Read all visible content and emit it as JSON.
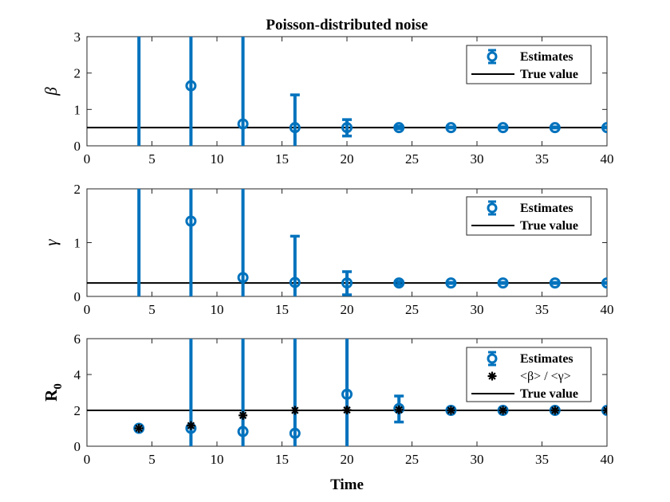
{
  "figure": {
    "title": "Poisson-distributed noise",
    "xlabel": "Time"
  },
  "colors": {
    "estimate": "#0072BD",
    "truth": "#000000",
    "ratio": "#000000",
    "axis": "#262626"
  },
  "chart_data": [
    {
      "type": "scatter",
      "panel": "beta",
      "ylabel": "β",
      "xlim": [
        0,
        40
      ],
      "ylim": [
        0,
        3
      ],
      "xticks": [
        "0",
        "5",
        "10",
        "15",
        "20",
        "25",
        "30",
        "35",
        "40"
      ],
      "yticks": [
        "0",
        "1",
        "2",
        "3"
      ],
      "legend": {
        "placement": "top-right",
        "entries": [
          "Estimates",
          "True value"
        ]
      },
      "true_value": 0.5,
      "series": [
        {
          "name": "Estimates",
          "x": [
            4,
            8,
            12,
            16,
            20,
            24,
            28,
            32,
            36,
            40
          ],
          "y": [
            null,
            1.65,
            0.6,
            0.5,
            0.5,
            0.5,
            0.5,
            0.5,
            0.5,
            0.5
          ],
          "lower": [
            0,
            0,
            0,
            0,
            0.27,
            0.47,
            0.49,
            0.49,
            0.49,
            0.49
          ],
          "upper": [
            3,
            3,
            3,
            1.4,
            0.72,
            0.54,
            0.52,
            0.52,
            0.52,
            0.52
          ]
        }
      ]
    },
    {
      "type": "scatter",
      "panel": "gamma",
      "ylabel": "γ",
      "xlim": [
        0,
        40
      ],
      "ylim": [
        0,
        2
      ],
      "xticks": [
        "0",
        "5",
        "10",
        "15",
        "20",
        "25",
        "30",
        "35",
        "40"
      ],
      "yticks": [
        "0",
        "1",
        "2"
      ],
      "legend": {
        "placement": "top-right",
        "entries": [
          "Estimates",
          "True value"
        ]
      },
      "true_value": 0.25,
      "series": [
        {
          "name": "Estimates",
          "x": [
            4,
            8,
            12,
            16,
            20,
            24,
            28,
            32,
            36,
            40
          ],
          "y": [
            null,
            1.4,
            0.35,
            0.26,
            0.25,
            0.25,
            0.25,
            0.25,
            0.25,
            0.25
          ],
          "lower": [
            0,
            0,
            0,
            0,
            0.03,
            0.22,
            0.24,
            0.24,
            0.24,
            0.24
          ],
          "upper": [
            2,
            2,
            2,
            1.12,
            0.46,
            0.28,
            0.26,
            0.26,
            0.26,
            0.26
          ]
        }
      ]
    },
    {
      "type": "scatter",
      "panel": "R0",
      "ylabel": "R",
      "ylabel_sub": "0",
      "xlim": [
        0,
        40
      ],
      "ylim": [
        0,
        6
      ],
      "xticks": [
        "0",
        "5",
        "10",
        "15",
        "20",
        "25",
        "30",
        "35",
        "40"
      ],
      "yticks": [
        "0",
        "2",
        "4",
        "6"
      ],
      "legend": {
        "placement": "top-right",
        "entries": [
          "Estimates",
          "<β> / <γ>",
          "True value"
        ]
      },
      "true_value": 2,
      "series": [
        {
          "name": "Estimates",
          "x": [
            4,
            8,
            12,
            16,
            20,
            24,
            28,
            32,
            36,
            40
          ],
          "y": [
            1.0,
            1.0,
            0.82,
            0.72,
            2.9,
            2.1,
            2.0,
            2.0,
            2.0,
            2.0
          ],
          "lower": [
            1.0,
            0,
            0,
            0,
            0,
            1.35,
            1.95,
            1.95,
            1.95,
            1.95
          ],
          "upper": [
            1.0,
            6,
            6,
            6,
            6,
            2.8,
            2.05,
            2.05,
            2.05,
            2.05
          ]
        },
        {
          "name": "<β> / <γ>",
          "x": [
            4,
            8,
            12,
            16,
            20,
            24,
            28,
            32,
            36,
            40
          ],
          "y": [
            1.0,
            1.15,
            1.72,
            2.0,
            2.02,
            2.03,
            2.0,
            2.0,
            2.0,
            2.0
          ]
        }
      ]
    }
  ]
}
